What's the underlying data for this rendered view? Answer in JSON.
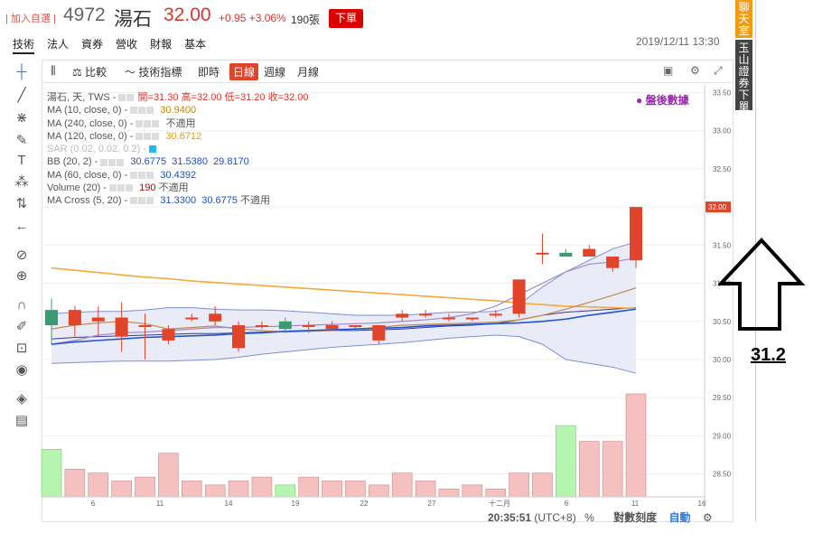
{
  "header": {
    "add_watch": "| 加入自選 |",
    "code": "4972",
    "name": "湯石",
    "price": "32.00",
    "change": "+0.95 +3.06%",
    "volume": "190張",
    "order_button": "下單"
  },
  "nav_tabs": [
    "技術",
    "法人",
    "資券",
    "營收",
    "財報",
    "基本"
  ],
  "datetime": "2019/12/11 13:30",
  "chart_toolbar": {
    "compare": "比較",
    "indicators": "技術指標",
    "intraday": "即時",
    "daily": "日線",
    "weekly": "週線",
    "monthly": "月線"
  },
  "legend": {
    "main": "湯石, 天, TWS",
    "open": "開=31.30",
    "high": "高=32.00",
    "low": "低=31.20",
    "close": "收=32.00",
    "ma10_label": "MA (10, close, 0)",
    "ma10_value": "30.9400",
    "ma240_label": "MA (240, close, 0)",
    "ma240_value": "不適用",
    "ma120_label": "MA (120, close, 0)",
    "ma120_value": "30.6712",
    "sar_label": "SAR (0.02, 0.02, 0.2)",
    "bb_label": "BB (20, 2)",
    "bb_values": [
      "30.6775",
      "31.5380",
      "29.8170"
    ],
    "ma60_label": "MA (60, close, 0)",
    "ma60_value": "30.4392",
    "volume_label": "Volume (20)",
    "volume_value": "190",
    "volume_extra": "不適用",
    "macross_label": "MA Cross (5, 20)",
    "macross_values": [
      "31.3300",
      "30.6775",
      "不適用"
    ]
  },
  "after_hours": "● 盤後數據",
  "side": {
    "chat": "聊天室",
    "order": "玉山證券下單"
  },
  "annotation_value": "31.2",
  "status_bar": {
    "time": "20:35:51",
    "tz": "(UTC+8)",
    "percent": "%",
    "log_scale": "對數刻度",
    "auto": "自動"
  },
  "price_axis": {
    "ticks": [
      "33.50",
      "33.00",
      "32.50",
      "32.00",
      "31.50",
      "31.00",
      "30.50",
      "30.00",
      "29.50",
      "29.00",
      "28.50"
    ],
    "current_label": "32.00"
  },
  "date_axis": [
    "6",
    "11",
    "14",
    "19",
    "22",
    "27",
    "十二月",
    "6",
    "11",
    "16"
  ],
  "chart_data": {
    "type": "candlestick",
    "ylim": [
      28.2,
      33.6
    ],
    "candles": [
      {
        "o": 30.65,
        "h": 30.8,
        "l": 30.2,
        "c": 30.45
      },
      {
        "o": 30.45,
        "h": 30.7,
        "l": 30.3,
        "c": 30.65
      },
      {
        "o": 30.5,
        "h": 30.7,
        "l": 30.3,
        "c": 30.55
      },
      {
        "o": 30.3,
        "h": 30.75,
        "l": 30.1,
        "c": 30.55
      },
      {
        "o": 30.45,
        "h": 30.6,
        "l": 30.0,
        "c": 30.45
      },
      {
        "o": 30.25,
        "h": 30.45,
        "l": 30.2,
        "c": 30.4
      },
      {
        "o": 30.55,
        "h": 30.6,
        "l": 30.5,
        "c": 30.55
      },
      {
        "o": 30.5,
        "h": 30.7,
        "l": 30.45,
        "c": 30.6
      },
      {
        "o": 30.15,
        "h": 30.5,
        "l": 30.1,
        "c": 30.45
      },
      {
        "o": 30.45,
        "h": 30.5,
        "l": 30.4,
        "c": 30.45
      },
      {
        "o": 30.5,
        "h": 30.55,
        "l": 30.35,
        "c": 30.4
      },
      {
        "o": 30.45,
        "h": 30.5,
        "l": 30.35,
        "c": 30.45
      },
      {
        "o": 30.4,
        "h": 30.5,
        "l": 30.4,
        "c": 30.45
      },
      {
        "o": 30.45,
        "h": 30.45,
        "l": 30.4,
        "c": 30.45
      },
      {
        "o": 30.25,
        "h": 30.45,
        "l": 30.2,
        "c": 30.45
      },
      {
        "o": 30.55,
        "h": 30.65,
        "l": 30.5,
        "c": 30.6
      },
      {
        "o": 30.6,
        "h": 30.65,
        "l": 30.55,
        "c": 30.6
      },
      {
        "o": 30.55,
        "h": 30.6,
        "l": 30.5,
        "c": 30.55
      },
      {
        "o": 30.55,
        "h": 30.55,
        "l": 30.5,
        "c": 30.55
      },
      {
        "o": 30.6,
        "h": 30.65,
        "l": 30.55,
        "c": 30.6
      },
      {
        "o": 30.6,
        "h": 31.05,
        "l": 30.55,
        "c": 31.05
      },
      {
        "o": 31.4,
        "h": 31.65,
        "l": 31.25,
        "c": 31.4
      },
      {
        "o": 31.4,
        "h": 31.45,
        "l": 31.35,
        "c": 31.35
      },
      {
        "o": 31.35,
        "h": 31.5,
        "l": 31.35,
        "c": 31.45
      },
      {
        "o": 31.2,
        "h": 31.35,
        "l": 31.15,
        "c": 31.35
      },
      {
        "o": 31.3,
        "h": 32.0,
        "l": 31.2,
        "c": 32.0
      }
    ],
    "volume": [
      12,
      7,
      6,
      4,
      5,
      11,
      4,
      3,
      4,
      5,
      3,
      5,
      4,
      4,
      3,
      6,
      4,
      2,
      3,
      2,
      6,
      6,
      18,
      14,
      14,
      26
    ],
    "volume_ymax": 26,
    "ma120": [
      31.2,
      31.17,
      31.14,
      31.11,
      31.08,
      31.06,
      31.03,
      31.01,
      30.99,
      30.97,
      30.95,
      30.93,
      30.91,
      30.89,
      30.87,
      30.85,
      30.83,
      30.81,
      30.79,
      30.77,
      30.74,
      30.72,
      30.7,
      30.69,
      30.68,
      30.67
    ],
    "ma60": [
      30.2,
      30.23,
      30.25,
      30.27,
      30.29,
      30.3,
      30.31,
      30.32,
      30.34,
      30.35,
      30.37,
      30.38,
      30.39,
      30.4,
      30.41,
      30.42,
      30.44,
      30.45,
      30.46,
      30.47,
      30.48,
      30.5,
      30.53,
      30.58,
      30.62,
      30.66
    ],
    "ma10": [
      30.4,
      30.45,
      30.48,
      30.5,
      30.47,
      30.4,
      30.42,
      30.44,
      30.4,
      30.38,
      30.36,
      30.37,
      30.38,
      30.4,
      30.42,
      30.45,
      30.46,
      30.47,
      30.48,
      30.49,
      30.52,
      30.58,
      30.66,
      30.75,
      30.84,
      30.94
    ],
    "bb_upper": [
      30.6,
      30.62,
      30.63,
      30.63,
      30.65,
      30.68,
      30.68,
      30.66,
      30.65,
      30.65,
      30.64,
      30.62,
      30.6,
      30.58,
      30.58,
      30.58,
      30.6,
      30.62,
      30.62,
      30.63,
      30.72,
      30.95,
      31.15,
      31.3,
      31.45,
      31.54
    ],
    "bb_lower": [
      29.95,
      29.96,
      29.97,
      29.98,
      29.98,
      29.98,
      29.99,
      30.0,
      30.03,
      30.07,
      30.1,
      30.13,
      30.16,
      30.18,
      30.2,
      30.22,
      30.25,
      30.28,
      30.3,
      30.32,
      30.3,
      30.2,
      30.0,
      29.95,
      29.9,
      29.82
    ],
    "bb_mid": [
      30.27,
      30.29,
      30.3,
      30.31,
      30.32,
      30.33,
      30.34,
      30.34,
      30.35,
      30.36,
      30.37,
      30.38,
      30.38,
      30.38,
      30.39,
      30.4,
      30.42,
      30.44,
      30.45,
      30.47,
      30.52,
      30.58,
      30.62,
      30.64,
      30.66,
      30.68
    ],
    "ma_cross": [
      30.2,
      30.25,
      30.32,
      30.35,
      30.36,
      30.38,
      30.4,
      30.42,
      30.42,
      30.43,
      30.44,
      30.45,
      30.46,
      30.47,
      30.48,
      30.5,
      30.52,
      30.55,
      30.6,
      30.7,
      30.85,
      31.0,
      31.15,
      31.25,
      31.28,
      31.33
    ]
  }
}
